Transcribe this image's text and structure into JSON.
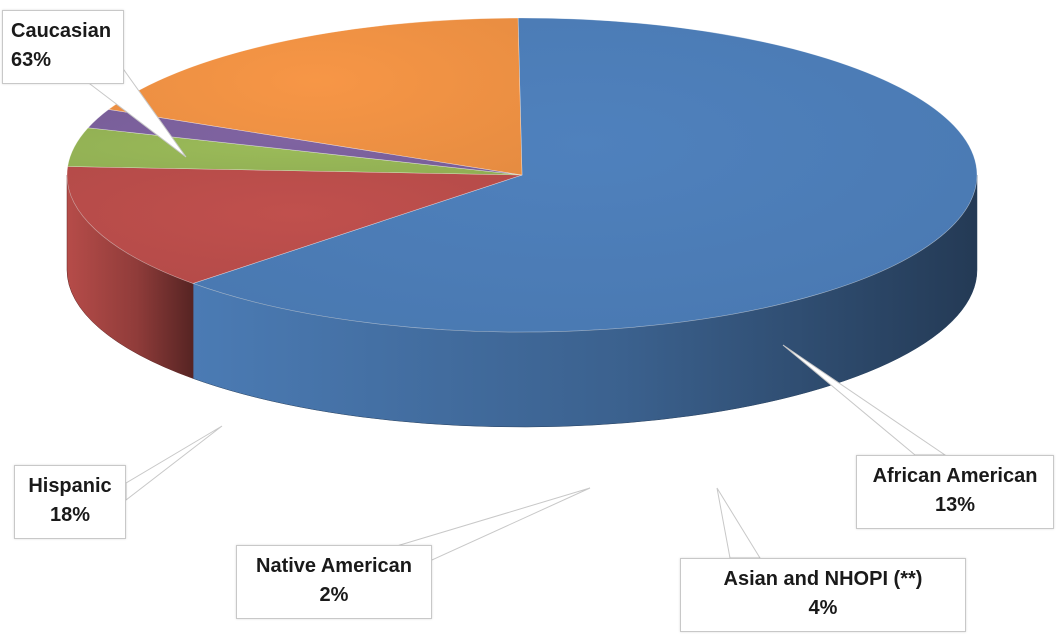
{
  "chart_data": {
    "type": "pie",
    "title": "",
    "three_d": true,
    "legend": "none",
    "slices": [
      {
        "label": "Caucasian",
        "value": 63,
        "display": "63%",
        "color": "#4f81bd"
      },
      {
        "label": "African American",
        "value": 13,
        "display": "13%",
        "color": "#c0504d"
      },
      {
        "label": "Asian and NHOPI (**)",
        "value": 4,
        "display": "4%",
        "color": "#9bbb59"
      },
      {
        "label": "Native American",
        "value": 2,
        "display": "2%",
        "color": "#8064a2"
      },
      {
        "label": "Hispanic",
        "value": 18,
        "display": "18%",
        "color": "#f79646"
      }
    ]
  }
}
